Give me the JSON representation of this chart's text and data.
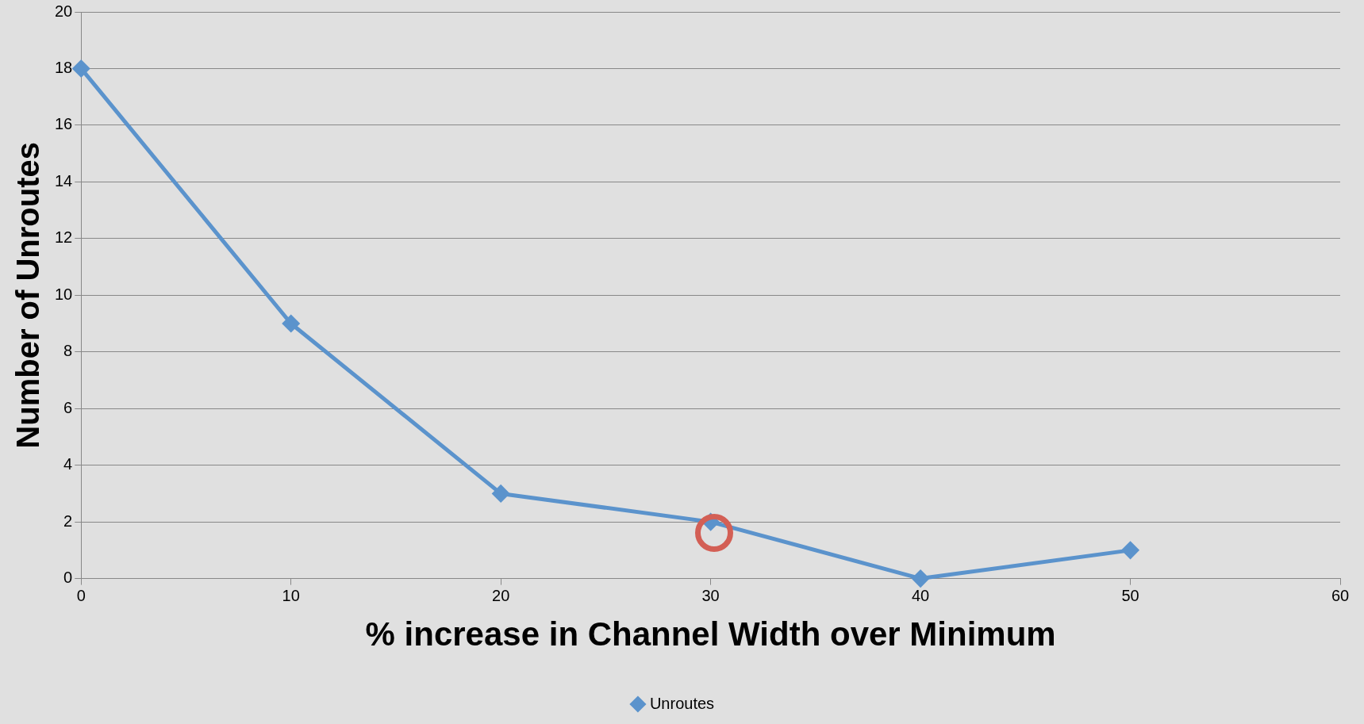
{
  "chart_data": {
    "type": "line",
    "xlabel": "% increase in Channel Width over Minimum",
    "ylabel": "Number of Unroutes",
    "x": [
      0,
      10,
      20,
      30,
      40,
      50
    ],
    "series": [
      {
        "name": "Unroutes",
        "color": "#5b93cc",
        "values": [
          18,
          9,
          3,
          2,
          0,
          1
        ]
      }
    ],
    "xlim": [
      0,
      60
    ],
    "xticks": [
      0,
      10,
      20,
      30,
      40,
      50,
      60
    ],
    "ylim": [
      0,
      20
    ],
    "yticks": [
      0,
      2,
      4,
      6,
      8,
      10,
      12,
      14,
      16,
      18,
      20
    ],
    "grid": "y",
    "legend": "bottom",
    "marker": "diamond",
    "line_style": "solid"
  }
}
